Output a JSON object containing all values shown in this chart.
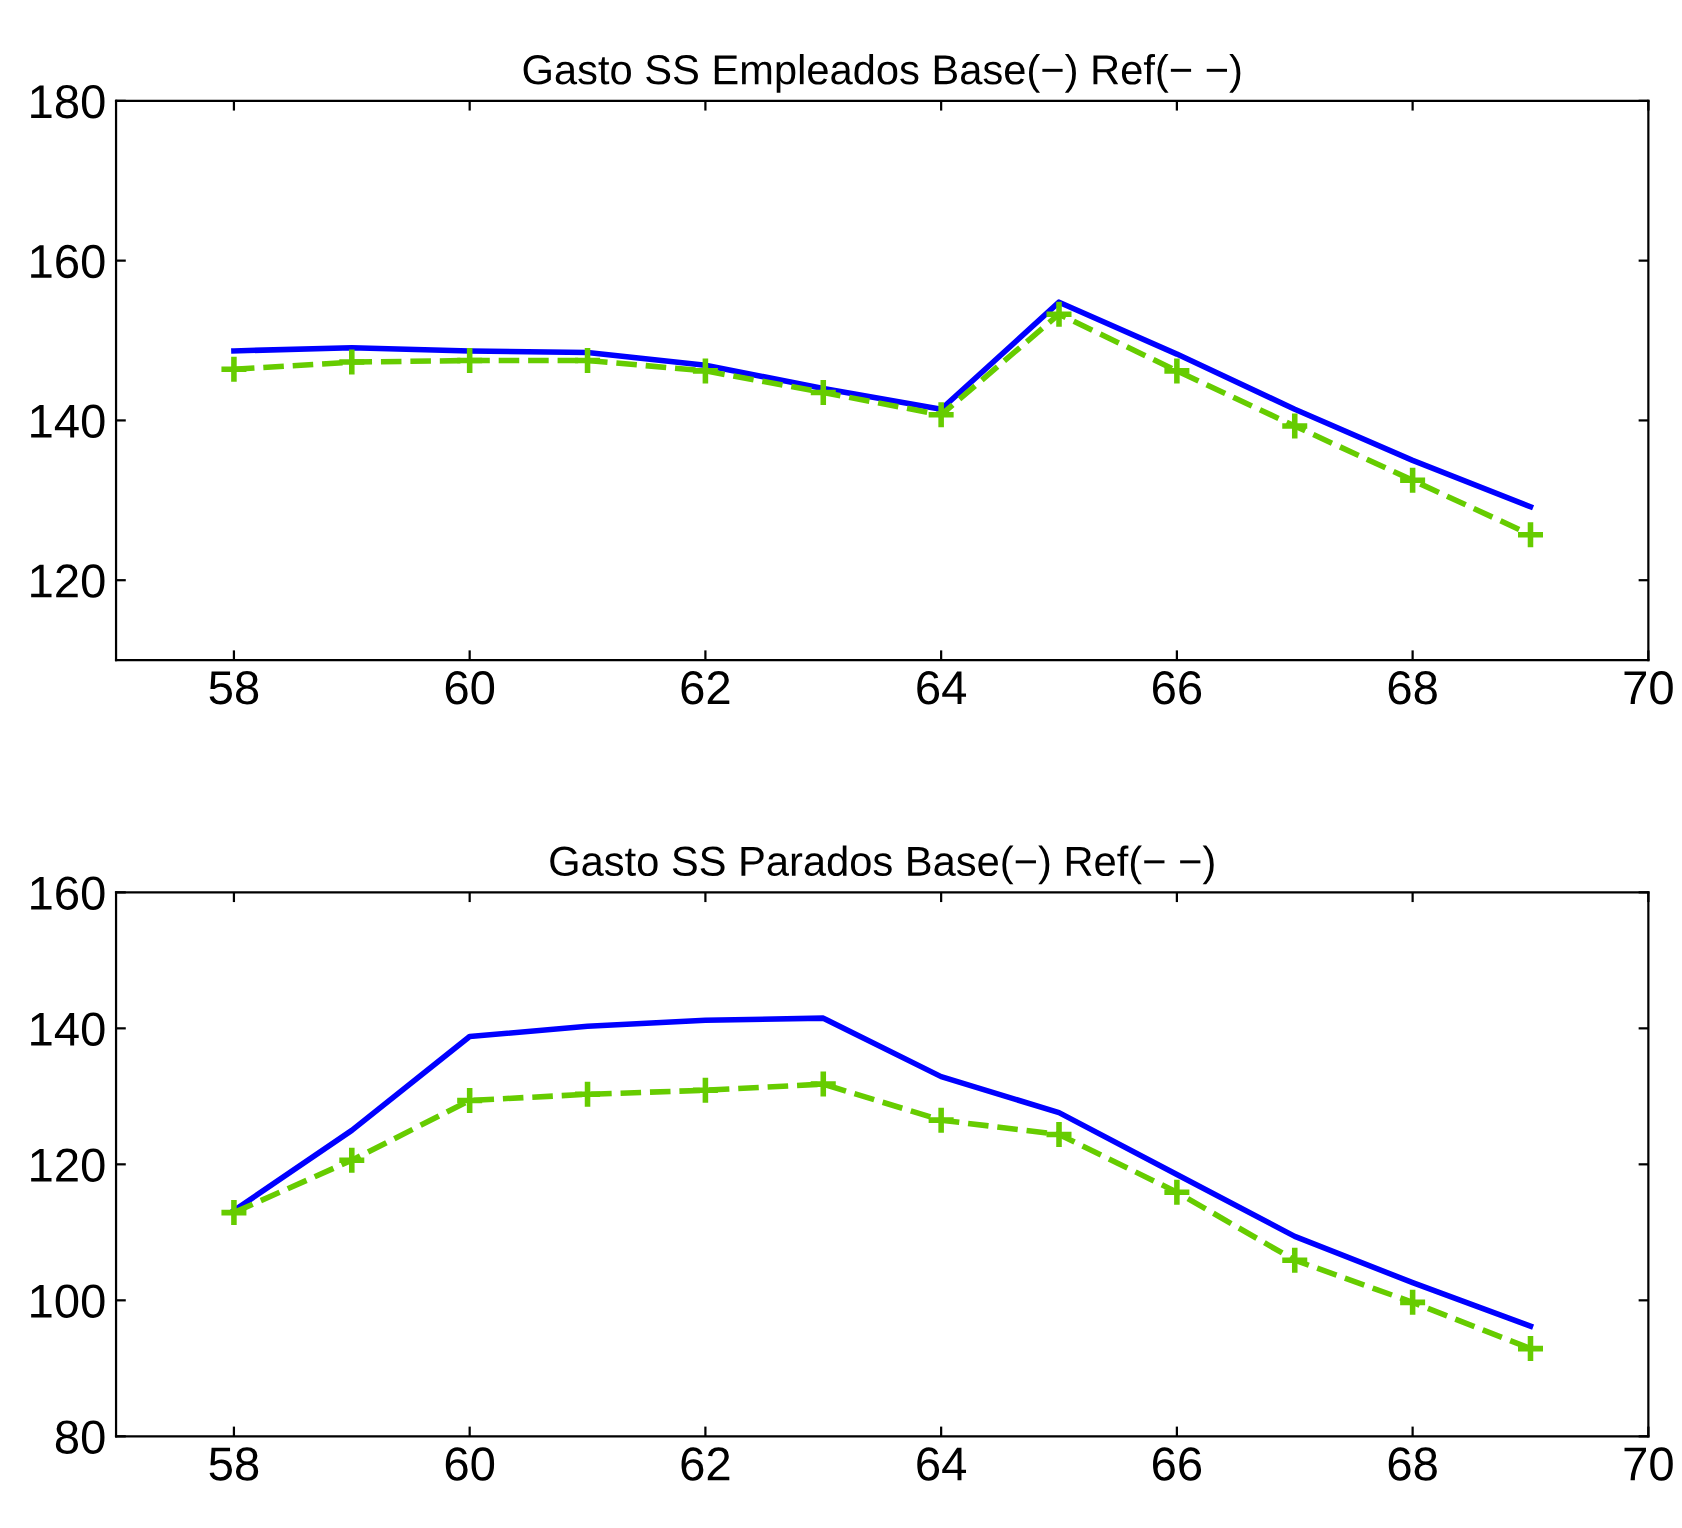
{
  "chart_data": [
    {
      "type": "line",
      "title": "Gasto SS Empleados Base(−) Ref(− −)",
      "x": [
        58,
        59,
        60,
        61,
        62,
        63,
        64,
        65,
        66,
        67,
        68,
        69
      ],
      "xlim": [
        57,
        70
      ],
      "xticks": [
        58,
        60,
        62,
        64,
        66,
        68,
        70
      ],
      "ylim": [
        110,
        180
      ],
      "yticks": [
        120,
        140,
        160,
        180
      ],
      "grid": false,
      "legend": false,
      "series": [
        {
          "color": "#0000ff",
          "line_style": "solid",
          "marker": "none",
          "values": [
            148.7,
            149.1,
            148.7,
            148.5,
            146.9,
            144.0,
            141.4,
            154.8,
            148.3,
            141.4,
            135.0,
            129.2
          ]
        },
        {
          "color": "#66cc00",
          "line_style": "dashed",
          "marker": "cross",
          "values": [
            146.4,
            147.3,
            147.5,
            147.5,
            146.2,
            143.5,
            140.7,
            153.3,
            146.2,
            139.3,
            132.5,
            125.7
          ]
        }
      ]
    },
    {
      "type": "line",
      "title": "Gasto SS Parados Base(−) Ref(− −)",
      "x": [
        58,
        59,
        60,
        61,
        62,
        63,
        64,
        65,
        66,
        67,
        68,
        69
      ],
      "xlim": [
        57,
        70
      ],
      "xticks": [
        58,
        60,
        62,
        64,
        66,
        68,
        70
      ],
      "ylim": [
        80,
        160
      ],
      "yticks": [
        80,
        100,
        120,
        140,
        160
      ],
      "grid": false,
      "legend": false,
      "series": [
        {
          "color": "#0000ff",
          "line_style": "solid",
          "marker": "none",
          "values": [
            113.2,
            125.0,
            138.8,
            140.3,
            141.2,
            141.5,
            132.9,
            127.6,
            118.5,
            109.4,
            102.6,
            96.2
          ]
        },
        {
          "color": "#66cc00",
          "line_style": "dashed",
          "marker": "cross",
          "values": [
            112.9,
            120.6,
            129.4,
            130.3,
            130.9,
            131.8,
            126.5,
            124.4,
            115.9,
            105.9,
            99.7,
            92.9
          ]
        }
      ]
    }
  ]
}
